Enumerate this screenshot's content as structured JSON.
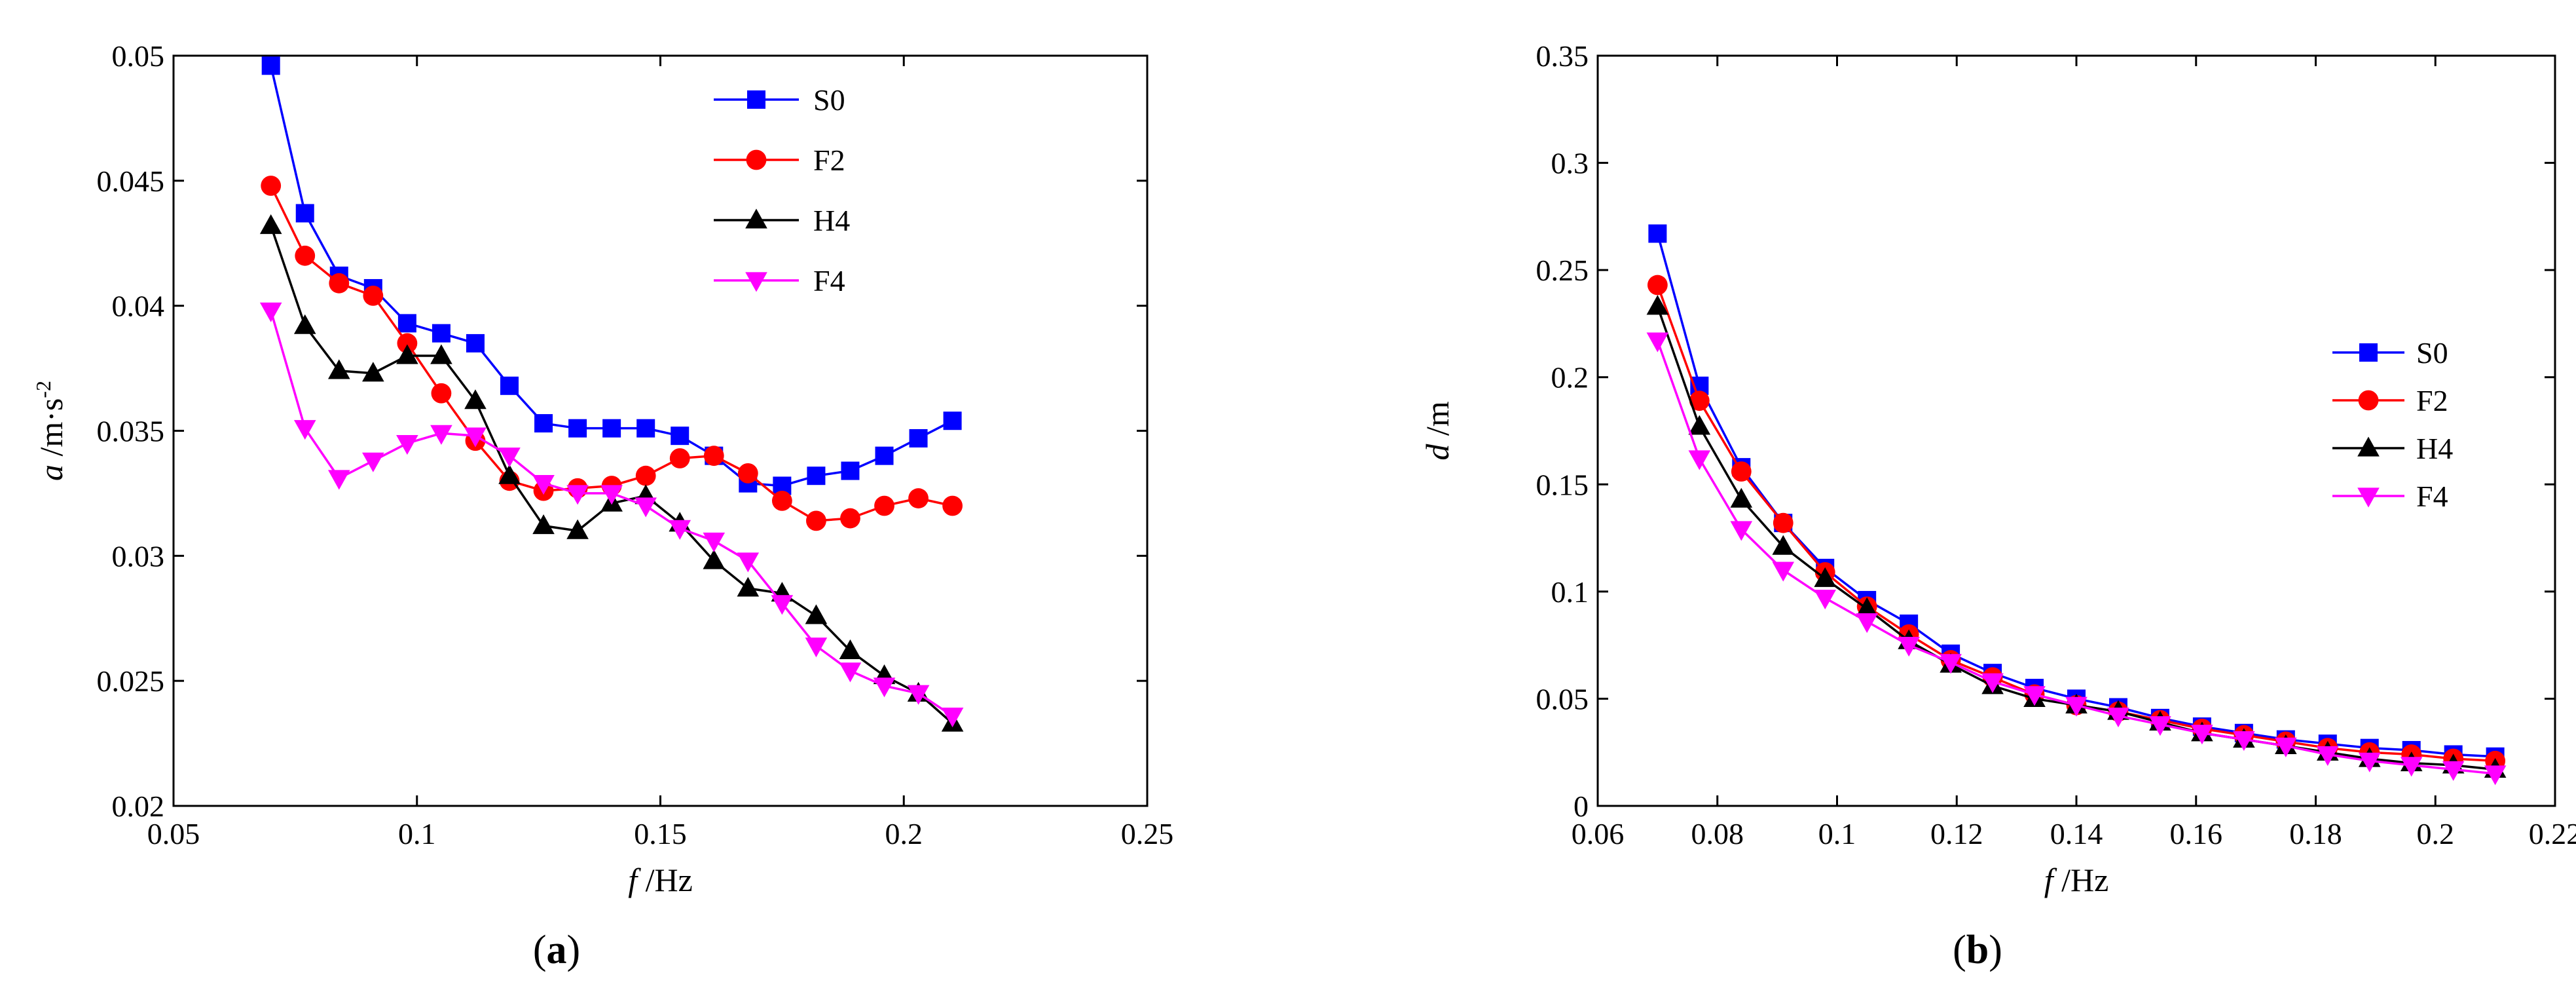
{
  "figure": {
    "panels": [
      {
        "id": "a",
        "label_open": "(",
        "label_letter": "a",
        "label_close": ")"
      },
      {
        "id": "b",
        "label_open": "(",
        "label_letter": "b",
        "label_close": ")"
      }
    ]
  },
  "chart_data": [
    {
      "type": "line",
      "panel": "a",
      "title": "",
      "xlabel_var": "f",
      "xlabel_unit": " /Hz",
      "ylabel_var": "a",
      "ylabel_unit": " /m·s",
      "ylabel_sup": "-2",
      "xlim": [
        0.05,
        0.25
      ],
      "ylim": [
        0.02,
        0.05
      ],
      "xticks": [
        0.05,
        0.1,
        0.15,
        0.2,
        0.25
      ],
      "xtick_labels": [
        "0.05",
        "0.1",
        "0.15",
        "0.2",
        "0.25"
      ],
      "yticks": [
        0.02,
        0.025,
        0.03,
        0.035,
        0.04,
        0.045,
        0.05
      ],
      "ytick_labels": [
        "0.02",
        "0.025",
        "0.03",
        "0.035",
        "0.04",
        "0.045",
        "0.05"
      ],
      "grid": false,
      "legend_position": "top-center",
      "x": [
        0.07,
        0.077,
        0.084,
        0.091,
        0.098,
        0.105,
        0.112,
        0.119,
        0.126,
        0.133,
        0.14,
        0.147,
        0.154,
        0.161,
        0.168,
        0.175,
        0.182,
        0.189,
        0.196,
        0.203,
        0.21
      ],
      "series": [
        {
          "name": "S0",
          "color": "#0000ff",
          "marker": "square",
          "values": [
            0.0496,
            0.0437,
            0.0412,
            0.0407,
            0.0393,
            0.0389,
            0.0385,
            0.0368,
            0.0353,
            0.0351,
            0.0351,
            0.0351,
            0.0348,
            0.034,
            0.0329,
            0.0328,
            0.0332,
            0.0334,
            0.034,
            0.0347,
            0.0354
          ]
        },
        {
          "name": "F2",
          "color": "#ff0000",
          "marker": "circle",
          "values": [
            0.0448,
            0.042,
            0.0409,
            0.0404,
            0.0385,
            0.0365,
            0.0346,
            0.033,
            0.0326,
            0.0327,
            0.0328,
            0.0332,
            0.0339,
            0.034,
            0.0333,
            0.0322,
            0.0314,
            0.0315,
            0.032,
            0.0323,
            0.032
          ]
        },
        {
          "name": "H4",
          "color": "#000000",
          "marker": "triangle-up",
          "values": [
            0.0432,
            0.0392,
            0.0374,
            0.0373,
            0.038,
            0.038,
            0.0362,
            0.0332,
            0.0312,
            0.031,
            0.0321,
            0.0324,
            0.0313,
            0.0298,
            0.0287,
            0.0285,
            0.0276,
            0.0262,
            0.0252,
            0.0245,
            0.0233
          ]
        },
        {
          "name": "F4",
          "color": "#ff00ff",
          "marker": "triangle-down",
          "values": [
            0.0398,
            0.0351,
            0.0331,
            0.0338,
            0.0345,
            0.0349,
            0.0348,
            0.034,
            0.0329,
            0.0325,
            0.0325,
            0.032,
            0.0311,
            0.0306,
            0.0298,
            0.0281,
            0.0264,
            0.0254,
            0.0248,
            0.0245,
            0.0236
          ]
        }
      ]
    },
    {
      "type": "line",
      "panel": "b",
      "title": "",
      "xlabel_var": "f",
      "xlabel_unit": " /Hz",
      "ylabel_var": "d",
      "ylabel_unit": " /m",
      "ylabel_sup": "",
      "xlim": [
        0.06,
        0.22
      ],
      "ylim": [
        0,
        0.35
      ],
      "xticks": [
        0.06,
        0.08,
        0.1,
        0.12,
        0.14,
        0.16,
        0.18,
        0.2,
        0.22
      ],
      "xtick_labels": [
        "0.06",
        "0.08",
        "0.1",
        "0.12",
        "0.14",
        "0.16",
        "0.18",
        "0.2",
        "0.22"
      ],
      "yticks": [
        0,
        0.05,
        0.1,
        0.15,
        0.2,
        0.25,
        0.3,
        0.35
      ],
      "ytick_labels": [
        "0",
        "0.05",
        "0.1",
        "0.15",
        "0.2",
        "0.25",
        "0.3",
        "0.35"
      ],
      "grid": false,
      "legend_position": "right",
      "x": [
        0.07,
        0.077,
        0.084,
        0.091,
        0.098,
        0.105,
        0.112,
        0.119,
        0.126,
        0.133,
        0.14,
        0.147,
        0.154,
        0.161,
        0.168,
        0.175,
        0.182,
        0.189,
        0.196,
        0.203,
        0.21
      ],
      "series": [
        {
          "name": "S0",
          "color": "#0000ff",
          "marker": "square",
          "values": [
            0.267,
            0.196,
            0.158,
            0.132,
            0.111,
            0.096,
            0.085,
            0.071,
            0.062,
            0.055,
            0.05,
            0.046,
            0.041,
            0.037,
            0.034,
            0.031,
            0.029,
            0.027,
            0.026,
            0.024,
            0.023
          ]
        },
        {
          "name": "F2",
          "color": "#ff0000",
          "marker": "circle",
          "values": [
            0.243,
            0.189,
            0.156,
            0.132,
            0.109,
            0.093,
            0.08,
            0.068,
            0.06,
            0.052,
            0.047,
            0.044,
            0.04,
            0.036,
            0.033,
            0.03,
            0.027,
            0.025,
            0.024,
            0.022,
            0.021
          ]
        },
        {
          "name": "H4",
          "color": "#000000",
          "marker": "triangle-up",
          "values": [
            0.233,
            0.177,
            0.143,
            0.121,
            0.106,
            0.092,
            0.077,
            0.066,
            0.056,
            0.05,
            0.047,
            0.044,
            0.039,
            0.034,
            0.031,
            0.028,
            0.025,
            0.022,
            0.02,
            0.019,
            0.017
          ]
        },
        {
          "name": "F4",
          "color": "#ff00ff",
          "marker": "triangle-down",
          "values": [
            0.217,
            0.162,
            0.129,
            0.11,
            0.097,
            0.086,
            0.075,
            0.067,
            0.058,
            0.052,
            0.047,
            0.042,
            0.038,
            0.034,
            0.031,
            0.028,
            0.024,
            0.021,
            0.019,
            0.017,
            0.015
          ]
        }
      ]
    }
  ]
}
